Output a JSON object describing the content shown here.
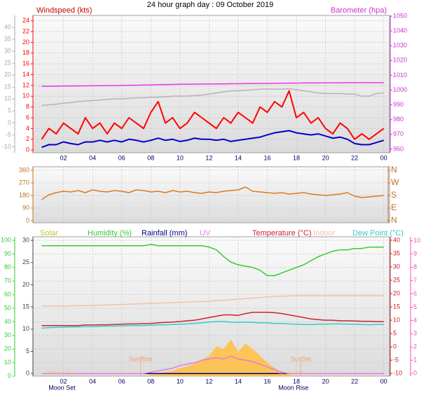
{
  "chart_data": [
    {
      "type": "line",
      "title": "24 hour graph day : 09 October 2019",
      "ylabel": "Windspeed (kts)",
      "y2label": "Barometer (hpa)",
      "axis_colors": {
        "y": "#ff0000",
        "y2": "#cc33cc",
        "y3": "#aaaaaa"
      },
      "x": [
        0.5,
        1,
        1.5,
        2,
        2.5,
        3,
        3.5,
        4,
        4.5,
        5,
        5.5,
        6,
        6.5,
        7,
        7.5,
        8,
        8.5,
        9,
        9.5,
        10,
        10.5,
        11,
        11.5,
        12,
        12.5,
        13,
        13.5,
        14,
        14.5,
        15,
        15.5,
        16,
        16.5,
        17,
        17.5,
        18,
        18.5,
        19,
        19.5,
        20,
        20.5,
        21,
        21.5,
        22,
        22.5,
        23,
        23.5,
        24
      ],
      "xlim": [
        -0.1,
        24.4
      ],
      "xticks": [
        {
          "value": 2,
          "label": "02"
        },
        {
          "value": 4,
          "label": "04"
        },
        {
          "value": 6,
          "label": "06"
        },
        {
          "value": 8,
          "label": "08"
        },
        10,
        12,
        14,
        16,
        18,
        20,
        22,
        {
          "value": 24,
          "label": "00"
        }
      ],
      "ylim": [
        -0.5,
        25
      ],
      "yticks": [
        0,
        2,
        4,
        6,
        8,
        10,
        12,
        14,
        16,
        18,
        20,
        22,
        24
      ],
      "y2lim": [
        957.6,
        1050.5
      ],
      "y2ticks": [
        960,
        970,
        980,
        990,
        1000,
        1010,
        1020,
        1030,
        1040,
        1050
      ],
      "y3lim": [
        -12.5,
        45
      ],
      "y3ticks": [
        -10,
        -5,
        0,
        5,
        10,
        15,
        20,
        25,
        30,
        35,
        40
      ],
      "grid": true,
      "series": [
        {
          "color": "#b4b4b4",
          "axis": "y",
          "values": [
            8.3,
            8.4,
            8.5,
            8.7,
            8.8,
            9,
            9.1,
            9.2,
            9.3,
            9.4,
            9.5,
            9.5,
            9.6,
            9.7,
            9.7,
            9.8,
            9.8,
            9.9,
            10,
            10,
            10,
            10.1,
            10.2,
            10.4,
            10.6,
            10.8,
            11,
            11,
            11.1,
            11.2,
            11.3,
            11.3,
            11.3,
            11.3,
            11.4,
            11.2,
            11,
            10.8,
            10.6,
            10.5,
            10.5,
            10.5,
            10.4,
            10.4,
            10,
            10,
            10.5,
            10.6
          ]
        },
        {
          "color": "#ee33ee",
          "axis": "y2",
          "values": [
            1002.5,
            1002.6,
            1002.6,
            1002.7,
            1002.7,
            1002.8,
            1002.8,
            1002.9,
            1002.9,
            1003,
            1003,
            1003.1,
            1003.2,
            1003.3,
            1003.4,
            1003.5,
            1003.6,
            1003.7,
            1003.8,
            1003.9,
            1004,
            1004,
            1004.1,
            1004.1,
            1004.2,
            1004.2,
            1004.3,
            1004.3,
            1004.4,
            1004.4,
            1004.5,
            1004.5,
            1004.6,
            1004.6,
            1004.7,
            1004.7,
            1004.8,
            1004.8,
            1004.8,
            1004.9,
            1004.9,
            1004.9,
            1005,
            1005,
            1005,
            1005,
            1005,
            1005
          ]
        },
        {
          "color": "#ff0000",
          "axis": "y",
          "values": [
            2,
            4,
            3,
            5,
            4,
            3,
            6,
            4,
            5,
            3,
            5,
            4,
            6,
            5,
            4,
            7,
            9,
            5,
            6,
            4,
            5,
            7,
            6,
            5,
            4,
            6,
            5,
            7,
            6,
            5,
            8,
            7,
            9,
            8,
            11,
            6,
            7,
            5,
            6,
            4,
            3,
            5,
            4,
            2,
            3,
            2,
            3,
            4
          ]
        },
        {
          "color": "#0000cc",
          "axis": "y",
          "values": [
            0.5,
            1,
            1,
            1.5,
            1.2,
            1,
            1.5,
            1.5,
            1.8,
            1.5,
            1.8,
            1.5,
            2,
            1.8,
            1.5,
            1.8,
            2.2,
            1.8,
            2,
            1.6,
            1.8,
            2.2,
            2,
            2,
            1.8,
            2,
            1.6,
            1.8,
            2,
            2.2,
            2.4,
            2.8,
            3.2,
            3.4,
            3.6,
            3.2,
            3,
            2.8,
            3,
            2.6,
            2.2,
            2.4,
            2,
            1.2,
            1,
            1,
            1.4,
            1.8
          ]
        }
      ]
    },
    {
      "type": "line",
      "axis_colors": {
        "y": "#c07020",
        "y2": "#c07020"
      },
      "x": [
        0.5,
        1,
        1.5,
        2,
        2.5,
        3,
        3.5,
        4,
        4.5,
        5,
        5.5,
        6,
        6.5,
        7,
        7.5,
        8,
        8.5,
        9,
        9.5,
        10,
        10.5,
        11,
        11.5,
        12,
        12.5,
        13,
        13.5,
        14,
        14.5,
        15,
        15.5,
        16,
        16.5,
        17,
        17.5,
        18,
        18.5,
        19,
        19.5,
        20,
        20.5,
        21,
        21.5,
        22,
        22.5,
        23,
        23.5,
        24
      ],
      "ylim": [
        -15,
        385
      ],
      "yticks": [
        0,
        90,
        180,
        270,
        360
      ],
      "y2lim": [
        -15,
        385
      ],
      "y2ticks": [
        {
          "value": 0,
          "label": "N"
        },
        {
          "value": 90,
          "label": "E"
        },
        {
          "value": 180,
          "label": "S"
        },
        {
          "value": 270,
          "label": "W"
        },
        {
          "value": 360,
          "label": "N"
        }
      ],
      "grid": true,
      "series": [
        {
          "color": "#d97a20",
          "axis": "y",
          "values": [
            150,
            185,
            200,
            210,
            205,
            215,
            200,
            220,
            210,
            205,
            215,
            210,
            200,
            220,
            215,
            205,
            210,
            200,
            215,
            205,
            210,
            200,
            195,
            205,
            200,
            210,
            215,
            220,
            240,
            210,
            205,
            200,
            195,
            200,
            190,
            195,
            200,
            190,
            185,
            180,
            185,
            190,
            200,
            175,
            165,
            170,
            175,
            180
          ]
        }
      ]
    },
    {
      "type": "line",
      "axis_colors": {
        "y": "#33cc33",
        "y2": "#cc2222",
        "y3": "#444444",
        "y4": "#ee55aa"
      },
      "x": [
        0.5,
        1,
        1.5,
        2,
        2.5,
        3,
        3.5,
        4,
        4.5,
        5,
        5.5,
        6,
        6.5,
        7,
        7.5,
        8,
        8.5,
        9,
        9.5,
        10,
        10.5,
        11,
        11.5,
        12,
        12.5,
        13,
        13.5,
        14,
        14.5,
        15,
        15.5,
        16,
        16.5,
        17,
        17.5,
        18,
        18.5,
        19,
        19.5,
        20,
        20.5,
        21,
        21.5,
        22,
        22.5,
        23,
        23.5,
        24
      ],
      "xlim": [
        -0.1,
        24.4
      ],
      "xticks": [
        {
          "value": 2,
          "label": "02"
        },
        {
          "value": 4,
          "label": "04"
        },
        {
          "value": 6,
          "label": "06"
        },
        {
          "value": 8,
          "label": "08"
        },
        10,
        12,
        14,
        16,
        18,
        20,
        22,
        {
          "value": 24,
          "label": "00"
        }
      ],
      "ylim": [
        0,
        102.6
      ],
      "yticks": [
        0,
        10,
        20,
        30,
        40,
        50,
        60,
        70,
        80,
        90,
        100
      ],
      "y2lim": [
        -11,
        41.3
      ],
      "y2ticks": [
        -10,
        -5,
        0,
        5,
        10,
        15,
        20,
        25,
        30,
        35,
        40
      ],
      "y3lim": [
        -0.6,
        30.8
      ],
      "y3ticks": [
        0,
        5,
        10,
        15,
        20,
        25,
        30
      ],
      "y4lim": [
        -0.2,
        10.3
      ],
      "y4ticks": [
        0,
        1,
        2,
        3,
        4,
        5,
        6,
        7,
        8,
        9,
        10
      ],
      "grid": true,
      "sun_events": [
        {
          "text": "SunRise",
          "x": 7.3
        },
        {
          "text": "SunSet",
          "x": 18.3
        }
      ],
      "moon_events": [
        {
          "text": "Moon Set",
          "x": 1.9
        },
        {
          "text": "Moon Rise",
          "x": 17.8
        }
      ],
      "series": [
        {
          "name": "Solar",
          "color": "#ffc040",
          "axis": "y",
          "style": "area",
          "values": [
            0,
            0,
            0,
            0,
            0,
            0,
            0,
            0,
            0,
            0,
            0,
            0,
            0,
            0,
            0,
            1,
            2,
            3,
            4,
            6,
            7,
            9,
            12,
            15,
            22,
            20,
            27,
            18,
            24,
            20,
            15,
            10,
            6,
            3,
            1,
            0,
            0,
            0,
            0,
            0,
            0,
            0,
            0,
            0,
            0,
            0,
            0,
            0
          ]
        },
        {
          "name": "Humidity (%)",
          "color": "#33cc33",
          "axis": "y",
          "values": [
            96,
            96,
            96,
            96,
            96,
            96,
            96,
            96,
            96,
            96,
            96,
            96,
            96,
            96,
            96,
            97,
            96,
            96,
            96,
            96,
            96,
            96,
            96,
            95,
            93,
            88,
            84,
            82,
            81,
            80,
            78,
            74,
            74,
            76,
            78,
            80,
            82,
            85,
            88,
            90,
            92,
            93,
            93,
            94,
            94,
            95,
            95,
            95
          ]
        },
        {
          "name": "Rainfall (mm)",
          "color": "#000080",
          "axis": "y3",
          "values": [
            0,
            0,
            0,
            0,
            0,
            0,
            0,
            0,
            0,
            0,
            0,
            0,
            0,
            0,
            0,
            0,
            0,
            0,
            0,
            0,
            0,
            0,
            0,
            0,
            0,
            0,
            0,
            0,
            0,
            0,
            0,
            0,
            0,
            0,
            0,
            0,
            0,
            0,
            0,
            0,
            0,
            0,
            0,
            0,
            0,
            0,
            0,
            0
          ]
        },
        {
          "name": "UV",
          "color": "#ee77dd",
          "axis": "y4",
          "values": [
            0,
            0,
            0,
            0,
            0,
            0,
            0,
            0,
            0,
            0,
            0,
            0,
            0,
            0,
            0,
            0.1,
            0.2,
            0.3,
            0.4,
            0.6,
            0.7,
            0.8,
            1,
            1.1,
            1.2,
            1.1,
            1.3,
            1.1,
            1,
            0.9,
            0.7,
            0.5,
            0.3,
            0.1,
            0,
            0,
            0,
            0,
            0,
            0,
            0,
            0,
            0,
            0,
            0,
            0,
            0,
            0
          ]
        },
        {
          "name": "Temperature (°C)",
          "color": "#cc2233",
          "axis": "y2",
          "values": [
            8,
            8,
            8,
            8,
            8,
            8,
            8.2,
            8.2,
            8.3,
            8.3,
            8.4,
            8.5,
            8.6,
            8.6,
            8.7,
            8.8,
            9,
            9.2,
            9.3,
            9.5,
            9.8,
            10,
            10.5,
            11,
            11.5,
            12,
            12,
            11.8,
            12.5,
            13,
            13,
            13,
            12.8,
            12.5,
            12,
            11.5,
            11,
            10.5,
            10.2,
            10,
            10,
            9.8,
            9.8,
            9.7,
            9.6,
            9.6,
            9.5,
            9.5
          ]
        },
        {
          "name": "Indoor",
          "color": "#f4c0a8",
          "axis": "y2",
          "values": [
            15.3,
            15.3,
            15.3,
            15.3,
            15.4,
            15.4,
            15.5,
            15.5,
            15.6,
            15.7,
            15.8,
            15.9,
            16,
            16.1,
            16.2,
            16.3,
            16.4,
            16.5,
            16.6,
            16.7,
            16.8,
            16.9,
            17,
            17.1,
            17.3,
            17.5,
            17.7,
            17.9,
            18.1,
            18.3,
            18.5,
            18.7,
            18.9,
            19,
            19.1,
            19.2,
            19.2,
            19.2,
            19.2,
            19.2,
            19.2,
            19.2,
            19.2,
            19.2,
            19.2,
            19.2,
            19.2,
            19.2
          ]
        },
        {
          "name": "Dew Point (°C)",
          "color": "#33cccc",
          "axis": "y2",
          "values": [
            7,
            7.2,
            7.3,
            7.4,
            7.5,
            7.5,
            7.6,
            7.6,
            7.7,
            7.8,
            7.8,
            7.9,
            8,
            8,
            8,
            8.1,
            8.2,
            8.3,
            8.4,
            8.5,
            8.6,
            8.8,
            9,
            9.3,
            9.5,
            9.5,
            9.3,
            9.2,
            9.3,
            9.2,
            9,
            9,
            8.8,
            8.8,
            8.6,
            8.5,
            8.4,
            8.4,
            8.5,
            8.5,
            8.6,
            8.6,
            8.5,
            8.5,
            8.4,
            8.3,
            8.4,
            8.4
          ]
        }
      ]
    }
  ]
}
